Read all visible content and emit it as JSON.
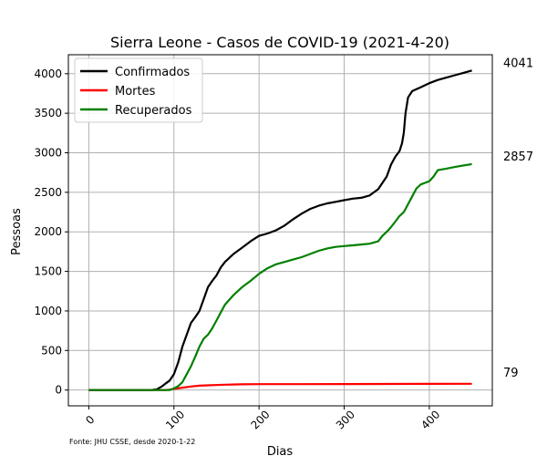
{
  "chart_data": {
    "type": "line",
    "title": "Sierra Leone - Casos de COVID-19 (2021-4-20)",
    "xlabel": "Dias",
    "ylabel": "Pessoas",
    "xlim": [
      -24,
      474
    ],
    "ylim": [
      -200,
      4240
    ],
    "xticks": [
      0,
      100,
      200,
      300,
      400
    ],
    "yticks": [
      0,
      500,
      1000,
      1500,
      2000,
      2500,
      3000,
      3500,
      4000
    ],
    "grid": true,
    "legend_position": "top-left",
    "source_note": "Fonte: JHU CSSE, desde 2020-1-22",
    "end_labels": [
      "4041",
      "2857",
      "79"
    ],
    "series": [
      {
        "name": "Confirmados",
        "color": "#000000",
        "points": [
          [
            0,
            0
          ],
          [
            50,
            0
          ],
          [
            70,
            0
          ],
          [
            75,
            2
          ],
          [
            80,
            10
          ],
          [
            85,
            40
          ],
          [
            90,
            80
          ],
          [
            95,
            120
          ],
          [
            100,
            200
          ],
          [
            105,
            350
          ],
          [
            110,
            550
          ],
          [
            115,
            700
          ],
          [
            120,
            850
          ],
          [
            125,
            920
          ],
          [
            130,
            1000
          ],
          [
            135,
            1150
          ],
          [
            140,
            1300
          ],
          [
            145,
            1380
          ],
          [
            150,
            1450
          ],
          [
            155,
            1550
          ],
          [
            160,
            1620
          ],
          [
            170,
            1720
          ],
          [
            180,
            1800
          ],
          [
            190,
            1880
          ],
          [
            200,
            1950
          ],
          [
            210,
            1980
          ],
          [
            220,
            2020
          ],
          [
            230,
            2080
          ],
          [
            240,
            2160
          ],
          [
            250,
            2230
          ],
          [
            260,
            2290
          ],
          [
            270,
            2330
          ],
          [
            280,
            2360
          ],
          [
            290,
            2380
          ],
          [
            300,
            2400
          ],
          [
            310,
            2420
          ],
          [
            320,
            2430
          ],
          [
            330,
            2460
          ],
          [
            340,
            2540
          ],
          [
            350,
            2700
          ],
          [
            355,
            2850
          ],
          [
            360,
            2950
          ],
          [
            365,
            3020
          ],
          [
            368,
            3120
          ],
          [
            370,
            3250
          ],
          [
            372,
            3500
          ],
          [
            375,
            3700
          ],
          [
            380,
            3780
          ],
          [
            390,
            3830
          ],
          [
            400,
            3880
          ],
          [
            410,
            3920
          ],
          [
            420,
            3950
          ],
          [
            430,
            3980
          ],
          [
            440,
            4010
          ],
          [
            450,
            4041
          ]
        ]
      },
      {
        "name": "Mortes",
        "color": "#ff0000",
        "points": [
          [
            0,
            0
          ],
          [
            90,
            0
          ],
          [
            95,
            5
          ],
          [
            100,
            15
          ],
          [
            110,
            30
          ],
          [
            120,
            45
          ],
          [
            130,
            55
          ],
          [
            140,
            60
          ],
          [
            160,
            68
          ],
          [
            180,
            72
          ],
          [
            200,
            74
          ],
          [
            250,
            75
          ],
          [
            300,
            76
          ],
          [
            350,
            77
          ],
          [
            400,
            78
          ],
          [
            450,
            79
          ]
        ]
      },
      {
        "name": "Recuperados",
        "color": "#008000",
        "points": [
          [
            0,
            0
          ],
          [
            95,
            0
          ],
          [
            100,
            20
          ],
          [
            105,
            50
          ],
          [
            110,
            100
          ],
          [
            115,
            200
          ],
          [
            120,
            300
          ],
          [
            125,
            420
          ],
          [
            130,
            550
          ],
          [
            135,
            650
          ],
          [
            140,
            700
          ],
          [
            145,
            780
          ],
          [
            150,
            880
          ],
          [
            155,
            980
          ],
          [
            160,
            1080
          ],
          [
            170,
            1200
          ],
          [
            180,
            1300
          ],
          [
            190,
            1380
          ],
          [
            200,
            1470
          ],
          [
            210,
            1540
          ],
          [
            220,
            1590
          ],
          [
            230,
            1620
          ],
          [
            240,
            1650
          ],
          [
            250,
            1680
          ],
          [
            260,
            1720
          ],
          [
            270,
            1760
          ],
          [
            280,
            1790
          ],
          [
            290,
            1810
          ],
          [
            300,
            1820
          ],
          [
            310,
            1830
          ],
          [
            320,
            1840
          ],
          [
            330,
            1850
          ],
          [
            340,
            1880
          ],
          [
            345,
            1950
          ],
          [
            350,
            2000
          ],
          [
            355,
            2060
          ],
          [
            360,
            2130
          ],
          [
            365,
            2200
          ],
          [
            370,
            2250
          ],
          [
            375,
            2350
          ],
          [
            380,
            2450
          ],
          [
            385,
            2550
          ],
          [
            390,
            2600
          ],
          [
            395,
            2620
          ],
          [
            400,
            2640
          ],
          [
            405,
            2700
          ],
          [
            410,
            2780
          ],
          [
            420,
            2800
          ],
          [
            430,
            2820
          ],
          [
            440,
            2840
          ],
          [
            450,
            2857
          ]
        ]
      }
    ]
  }
}
